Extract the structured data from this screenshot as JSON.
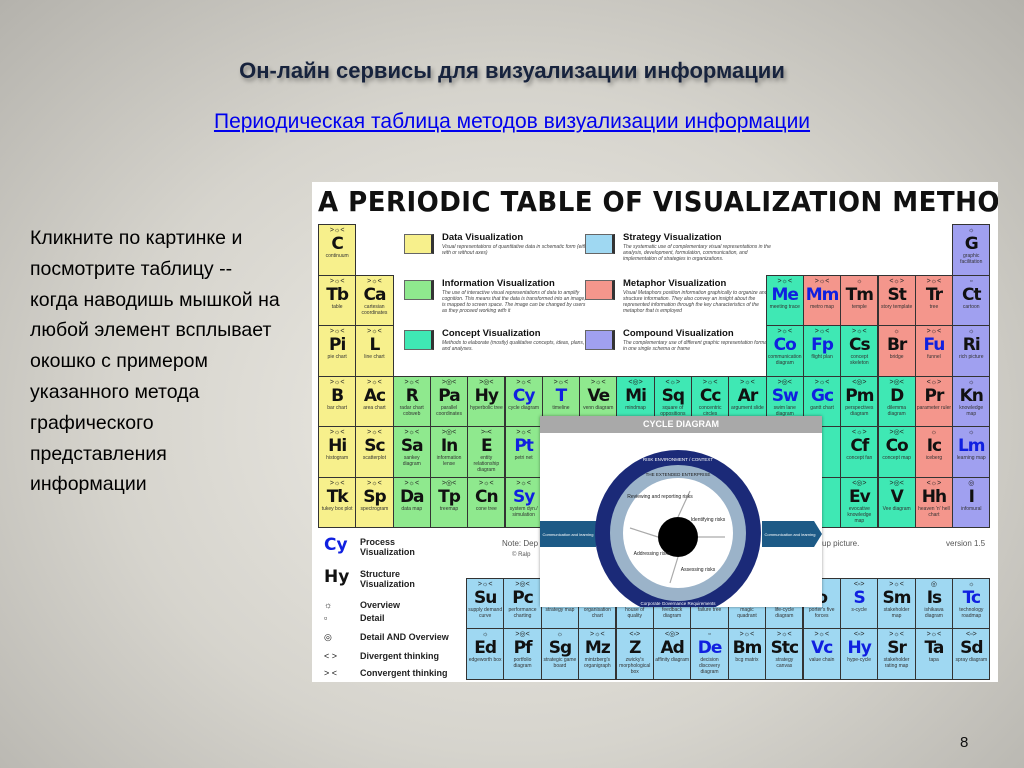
{
  "slide": {
    "title": "Он-лайн сервисы для визуализации информации",
    "link": "Периодическая таблица методов визуализации информации",
    "body": "Кликните по картинке и посмотрите таблицу -- когда наводишь мышкой на любой элемент всплывает окошко с примером указанного метода графического представления информации",
    "page_number": "8"
  },
  "table": {
    "heading": "A PERIODIC TABLE OF VISUALIZATION METHODS",
    "colors": {
      "d": "#f7f08c",
      "i": "#8fe98e",
      "c": "#3fe8b4",
      "s": "#9fd8f2",
      "m": "#f4968c",
      "x": "#a0a0f0",
      "process": "#1020e0"
    },
    "legend": [
      {
        "cat": "d",
        "title": "Data Visualization",
        "desc": "Visual representations of quantitative data in schematic form (either with or without axes)"
      },
      {
        "cat": "i",
        "title": "Information Visualization",
        "desc": "The use of interactive visual representations of data to amplify cognition. This means that the data is transformed into an image, it is mapped to screen space. The image can be changed by users as they proceed working with it"
      },
      {
        "cat": "c",
        "title": "Concept Visualization",
        "desc": "Methods to elaborate (mostly) qualitative concepts, ideas, plans, and analyses."
      },
      {
        "cat": "s",
        "title": "Strategy Visualization",
        "desc": "The systematic use of complementary visual representations in the analysis, development, formulation, communication, and implementation of strategies in organizations."
      },
      {
        "cat": "m",
        "title": "Metaphor Visualization",
        "desc": "Visual Metaphors position information graphically to organize and structure information. They also convey an insight about the represented information through the key characteristics of the metaphor that is employed"
      },
      {
        "cat": "x",
        "title": "Compound Visualization",
        "desc": "The complementary use of different graphic representation formats in one single schema or frame"
      }
    ],
    "key": [
      {
        "sym": "Cy",
        "label": "Process Visualization",
        "blue": true
      },
      {
        "sym": "Hy",
        "label": "Structure Visualization",
        "blue": false
      },
      {
        "sym": "☼",
        "label": "Overview"
      },
      {
        "sym": "▫",
        "label": "Detail"
      },
      {
        "sym": "◎",
        "label": "Detail AND Overview"
      },
      {
        "sym": "< >",
        "label": "Divergent thinking"
      },
      {
        "sym": "> <",
        "label": "Convergent thinking"
      }
    ],
    "note": "Note: Dep",
    "copyright": "© Ralp",
    "popup_note": "up picture.",
    "version": "version 1.5",
    "elements": [
      {
        "r": 1,
        "c": 1,
        "cat": "d",
        "ic": ">☼<",
        "sym": "C",
        "nm": "continuum"
      },
      {
        "r": 1,
        "c": 18,
        "cat": "x",
        "ic": "☼",
        "sym": "G",
        "nm": "graphic facilitation"
      },
      {
        "r": 2,
        "c": 1,
        "cat": "d",
        "ic": ">☼<",
        "sym": "Tb",
        "nm": "table"
      },
      {
        "r": 2,
        "c": 2,
        "cat": "d",
        "ic": ">☼<",
        "sym": "Ca",
        "nm": "cartesian coordinates"
      },
      {
        "r": 2,
        "c": 13,
        "cat": "c",
        "ic": ">☼<",
        "sym": "Me",
        "nm": "meeting trace",
        "blue": true
      },
      {
        "r": 2,
        "c": 14,
        "cat": "m",
        "ic": ">☼<",
        "sym": "Mm",
        "nm": "metro map",
        "blue": true
      },
      {
        "r": 2,
        "c": 15,
        "cat": "m",
        "ic": "☼",
        "sym": "Tm",
        "nm": "temple"
      },
      {
        "r": 2,
        "c": 16,
        "cat": "m",
        "ic": "<☼>",
        "sym": "St",
        "nm": "story template"
      },
      {
        "r": 2,
        "c": 17,
        "cat": "m",
        "ic": ">☼<",
        "sym": "Tr",
        "nm": "tree"
      },
      {
        "r": 2,
        "c": 18,
        "cat": "x",
        "ic": "▫",
        "sym": "Ct",
        "nm": "cartoon"
      },
      {
        "r": 3,
        "c": 1,
        "cat": "d",
        "ic": ">☼<",
        "sym": "Pi",
        "nm": "pie chart"
      },
      {
        "r": 3,
        "c": 2,
        "cat": "d",
        "ic": ">☼<",
        "sym": "L",
        "nm": "line chart"
      },
      {
        "r": 3,
        "c": 13,
        "cat": "c",
        "ic": ">☼<",
        "sym": "Co",
        "nm": "communication diagram",
        "blue": true
      },
      {
        "r": 3,
        "c": 14,
        "cat": "c",
        "ic": ">☼<",
        "sym": "Fp",
        "nm": "flight plan",
        "blue": true
      },
      {
        "r": 3,
        "c": 15,
        "cat": "c",
        "ic": ">☼<",
        "sym": "Cs",
        "nm": "concept skeleton"
      },
      {
        "r": 3,
        "c": 16,
        "cat": "m",
        "ic": "☼",
        "sym": "Br",
        "nm": "bridge"
      },
      {
        "r": 3,
        "c": 17,
        "cat": "m",
        "ic": ">☼<",
        "sym": "Fu",
        "nm": "funnel",
        "blue": true
      },
      {
        "r": 3,
        "c": 18,
        "cat": "x",
        "ic": "☼",
        "sym": "Ri",
        "nm": "rich picture"
      },
      {
        "r": 4,
        "c": 1,
        "cat": "d",
        "ic": ">☼<",
        "sym": "B",
        "nm": "bar chart"
      },
      {
        "r": 4,
        "c": 2,
        "cat": "d",
        "ic": ">☼<",
        "sym": "Ac",
        "nm": "area chart"
      },
      {
        "r": 4,
        "c": 3,
        "cat": "i",
        "ic": ">☼<",
        "sym": "R",
        "nm": "radar chart cobweb"
      },
      {
        "r": 4,
        "c": 4,
        "cat": "i",
        "ic": ">◎<",
        "sym": "Pa",
        "nm": "parallel coordinates"
      },
      {
        "r": 4,
        "c": 5,
        "cat": "i",
        "ic": ">◎<",
        "sym": "Hy",
        "nm": "hyperbolic tree"
      },
      {
        "r": 4,
        "c": 6,
        "cat": "i",
        "ic": ">☼<",
        "sym": "Cy",
        "nm": "cycle diagram",
        "blue": true
      },
      {
        "r": 4,
        "c": 7,
        "cat": "i",
        "ic": ">☼<",
        "sym": "T",
        "nm": "timeline",
        "blue": true
      },
      {
        "r": 4,
        "c": 8,
        "cat": "i",
        "ic": ">☼<",
        "sym": "Ve",
        "nm": "venn diagram"
      },
      {
        "r": 4,
        "c": 9,
        "cat": "c",
        "ic": "<◎>",
        "sym": "Mi",
        "nm": "mindmap"
      },
      {
        "r": 4,
        "c": 10,
        "cat": "c",
        "ic": "<☼>",
        "sym": "Sq",
        "nm": "square of oppositions"
      },
      {
        "r": 4,
        "c": 11,
        "cat": "c",
        "ic": ">☼<",
        "sym": "Cc",
        "nm": "concentric circles"
      },
      {
        "r": 4,
        "c": 12,
        "cat": "c",
        "ic": ">☼<",
        "sym": "Ar",
        "nm": "argument slide"
      },
      {
        "r": 4,
        "c": 13,
        "cat": "c",
        "ic": ">◎<",
        "sym": "Sw",
        "nm": "swim lane diagram",
        "blue": true
      },
      {
        "r": 4,
        "c": 14,
        "cat": "c",
        "ic": ">☼<",
        "sym": "Gc",
        "nm": "gantt chart",
        "blue": true
      },
      {
        "r": 4,
        "c": 15,
        "cat": "c",
        "ic": "<◎>",
        "sym": "Pm",
        "nm": "perspectives diagram"
      },
      {
        "r": 4,
        "c": 16,
        "cat": "c",
        "ic": ">◎<",
        "sym": "D",
        "nm": "dilemma diagram"
      },
      {
        "r": 4,
        "c": 17,
        "cat": "m",
        "ic": "<☼>",
        "sym": "Pr",
        "nm": "parameter ruler"
      },
      {
        "r": 4,
        "c": 18,
        "cat": "x",
        "ic": "☼",
        "sym": "Kn",
        "nm": "knowledge map"
      },
      {
        "r": 5,
        "c": 1,
        "cat": "d",
        "ic": ">☼<",
        "sym": "Hi",
        "nm": "histogram"
      },
      {
        "r": 5,
        "c": 2,
        "cat": "d",
        "ic": ">☼<",
        "sym": "Sc",
        "nm": "scatterplot"
      },
      {
        "r": 5,
        "c": 3,
        "cat": "i",
        "ic": ">☼<",
        "sym": "Sa",
        "nm": "sankey diagram"
      },
      {
        "r": 5,
        "c": 4,
        "cat": "i",
        "ic": ">◎<",
        "sym": "In",
        "nm": "information lense"
      },
      {
        "r": 5,
        "c": 5,
        "cat": "i",
        "ic": ">▫<",
        "sym": "E",
        "nm": "entity relationship diagram"
      },
      {
        "r": 5,
        "c": 6,
        "cat": "i",
        "ic": ">☼<",
        "sym": "Pt",
        "nm": "petri net",
        "blue": true
      },
      {
        "r": 5,
        "c": 15,
        "cat": "c",
        "ic": "<☼>",
        "sym": "Cf",
        "nm": "concept fan"
      },
      {
        "r": 5,
        "c": 16,
        "cat": "c",
        "ic": ">◎<",
        "sym": "Co",
        "nm": "concept map"
      },
      {
        "r": 5,
        "c": 17,
        "cat": "m",
        "ic": "☼",
        "sym": "Ic",
        "nm": "iceberg"
      },
      {
        "r": 5,
        "c": 18,
        "cat": "x",
        "ic": "☼",
        "sym": "Lm",
        "nm": "learning map",
        "blue": true
      },
      {
        "r": 6,
        "c": 1,
        "cat": "d",
        "ic": ">☼<",
        "sym": "Tk",
        "nm": "tukey box plot"
      },
      {
        "r": 6,
        "c": 2,
        "cat": "d",
        "ic": ">☼<",
        "sym": "Sp",
        "nm": "spectrogram"
      },
      {
        "r": 6,
        "c": 3,
        "cat": "i",
        "ic": ">☼<",
        "sym": "Da",
        "nm": "data map"
      },
      {
        "r": 6,
        "c": 4,
        "cat": "i",
        "ic": ">◎<",
        "sym": "Tp",
        "nm": "treemap"
      },
      {
        "r": 6,
        "c": 5,
        "cat": "i",
        "ic": ">☼<",
        "sym": "Cn",
        "nm": "cone tree"
      },
      {
        "r": 6,
        "c": 6,
        "cat": "i",
        "ic": ">☼<",
        "sym": "Sy",
        "nm": "system dyn./ simulation",
        "blue": true
      },
      {
        "r": 6,
        "c": 15,
        "cat": "c",
        "ic": "<◎>",
        "sym": "Ev",
        "nm": "evocative knowledge map"
      },
      {
        "r": 6,
        "c": 16,
        "cat": "c",
        "ic": ">◎<",
        "sym": "V",
        "nm": "Vee diagram"
      },
      {
        "r": 6,
        "c": 17,
        "cat": "m",
        "ic": "<☼>",
        "sym": "Hh",
        "nm": "heaven 'n' hell chart"
      },
      {
        "r": 6,
        "c": 18,
        "cat": "x",
        "ic": "◎",
        "sym": "I",
        "nm": "infomural"
      }
    ],
    "strategy": [
      [
        {
          "ic": ">☼<",
          "sym": "Su",
          "nm": "supply demand curve"
        },
        {
          "ic": ">◎<",
          "sym": "Pc",
          "nm": "performance charting"
        },
        {
          "nm": "strategy map"
        },
        {
          "nm": "organisation chart"
        },
        {
          "nm": "house of quality"
        },
        {
          "nm": "feedback diagram"
        },
        {
          "nm": "failure tree"
        },
        {
          "nm": "magic quadrant"
        },
        {
          "nm": "life-cycle diagram"
        },
        {
          "sym": "o",
          "nm": "porter's five forces"
        },
        {
          "ic": "<▫>",
          "sym": "S",
          "nm": "s-cycle",
          "blue": true
        },
        {
          "ic": ">☼<",
          "sym": "Sm",
          "nm": "stakeholder map"
        },
        {
          "ic": "◎",
          "sym": "Is",
          "nm": "ishikawa diagram"
        },
        {
          "ic": "☼",
          "sym": "Tc",
          "nm": "technology roadmap",
          "blue": true
        }
      ],
      [
        {
          "ic": "☼",
          "sym": "Ed",
          "nm": "edgeworth box"
        },
        {
          "ic": ">◎<",
          "sym": "Pf",
          "nm": "portfolio diagram"
        },
        {
          "ic": "☼",
          "sym": "Sg",
          "nm": "strategic game board"
        },
        {
          "ic": ">☼<",
          "sym": "Mz",
          "nm": "mintzberg's organigraph"
        },
        {
          "ic": "<▫>",
          "sym": "Z",
          "nm": "zwicky's morphological box"
        },
        {
          "ic": "<◎>",
          "sym": "Ad",
          "nm": "affinity diagram"
        },
        {
          "ic": "▫",
          "sym": "De",
          "nm": "decision discovery diagram",
          "blue": true
        },
        {
          "ic": ">☼<",
          "sym": "Bm",
          "nm": "bcg matrix"
        },
        {
          "ic": ">☼<",
          "sym": "Stc",
          "nm": "strategy canvas"
        },
        {
          "ic": ">☼<",
          "sym": "Vc",
          "nm": "value chain",
          "blue": true
        },
        {
          "ic": "<▫>",
          "sym": "Hy",
          "nm": "hype-cycle",
          "blue": true
        },
        {
          "ic": ">☼<",
          "sym": "Sr",
          "nm": "stakeholder rating map"
        },
        {
          "ic": ">☼<",
          "sym": "Ta",
          "nm": "tapa"
        },
        {
          "ic": "<▫>",
          "sym": "Sd",
          "nm": "spray diagram"
        }
      ]
    ],
    "popup": {
      "title": "CYCLE DIAGRAM",
      "outer_ring": "RISK ENVIRONMENT / CONTEXT",
      "middle_ring": "THE EXTENDED ENTERPRISE",
      "bottom_ring": "Corporate Governance Requirements",
      "steps": [
        "Reviewing and reporting risks",
        "Identifying risks",
        "Assessing risks",
        "Addressing risks"
      ],
      "arrow_left": "Communication and learning",
      "arrow_right": "Communication and learning",
      "colors": {
        "outer": "#1b2a78",
        "middle": "#9bb3c9",
        "arrow": "#1d5a86"
      }
    }
  }
}
